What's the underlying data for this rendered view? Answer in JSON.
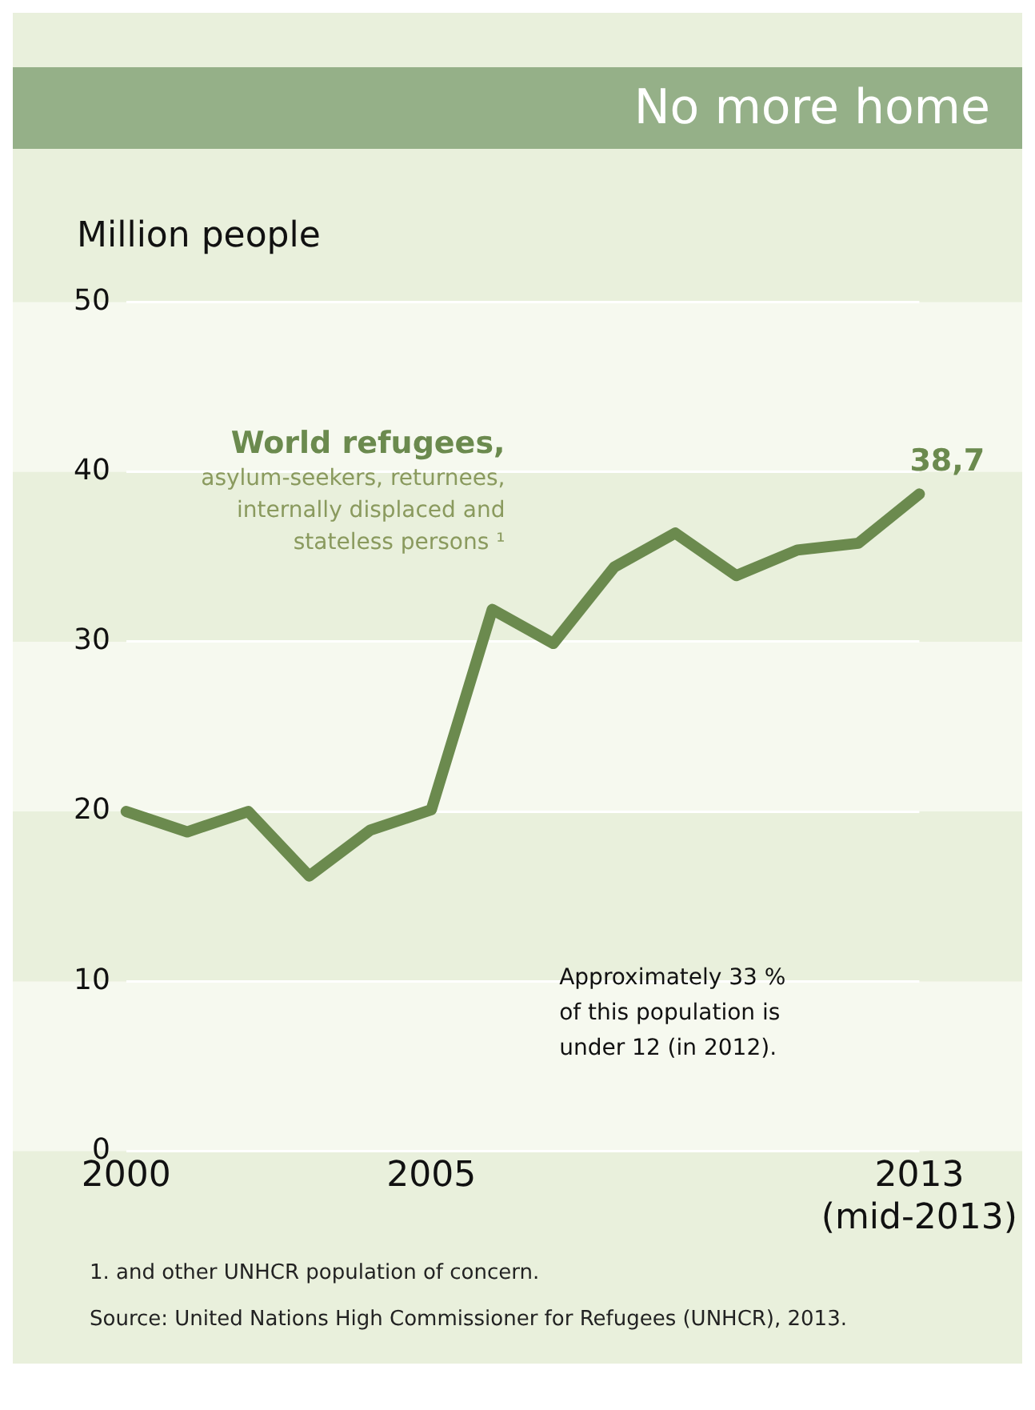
{
  "chart_data": {
    "type": "line",
    "title": "No more home",
    "ylabel": "Million people",
    "x": [
      2000,
      2001,
      2002,
      2003,
      2004,
      2005,
      2006,
      2007,
      2008,
      2009,
      2010,
      2011,
      2012,
      2013
    ],
    "series": [
      {
        "name": "World refugees, asylum-seekers, returnees, internally displaced and stateless persons ¹",
        "color": "#6b8a4e",
        "values": [
          20.0,
          18.8,
          20.0,
          16.2,
          18.9,
          20.1,
          31.9,
          29.9,
          34.4,
          36.4,
          33.9,
          35.4,
          35.8,
          38.7
        ],
        "value_labels": [
          null,
          null,
          null,
          null,
          null,
          null,
          null,
          null,
          null,
          null,
          null,
          null,
          null,
          "38,7"
        ]
      }
    ],
    "xlim": [
      2000,
      2013
    ],
    "xticks": [
      2000,
      2005,
      {
        "value": 2013,
        "label": "2013\n(mid-2013)"
      }
    ],
    "ylim": [
      0,
      50
    ],
    "yticks": [
      0,
      10,
      20,
      30,
      40,
      50
    ],
    "grid": true,
    "marker": "none",
    "line_style": "solid",
    "legend": false,
    "annotations": [
      "Approximately 33 % of this population is under 12 (in 2012).",
      "1. and other UNHCR population of concern.",
      "Source: United Nations High Commissioner for Refugees (UNHCR), 2013."
    ]
  }
}
